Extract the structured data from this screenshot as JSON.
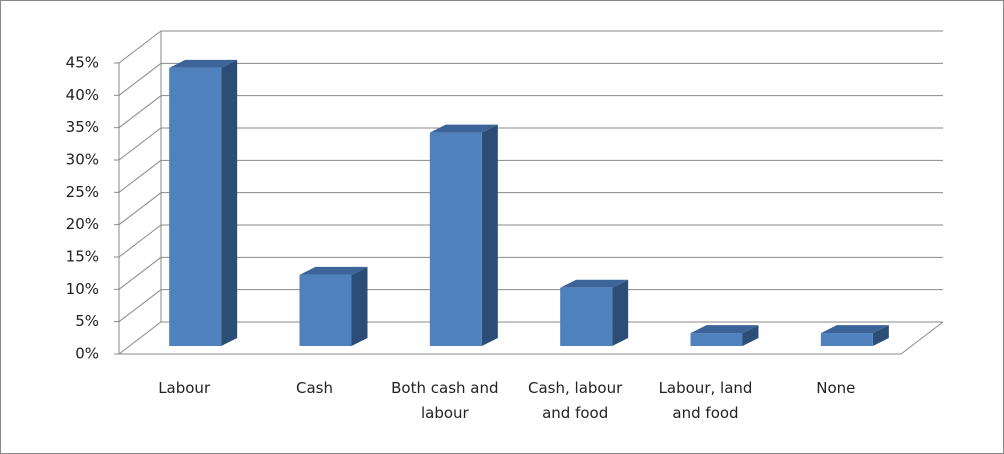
{
  "chart_data": {
    "type": "bar3d",
    "categories": [
      "Labour",
      "Cash",
      "Both cash and labour",
      "Cash, labour and food",
      "Labour, land and food",
      "None"
    ],
    "values": [
      43,
      11,
      33,
      9,
      2,
      2
    ],
    "color": "#4f81bd",
    "ylim": [
      0,
      45
    ],
    "yticks": [
      {
        "value": 0,
        "label": "0%"
      },
      {
        "value": 5,
        "label": "5%"
      },
      {
        "value": 10,
        "label": "10%"
      },
      {
        "value": 15,
        "label": "15%"
      },
      {
        "value": 20,
        "label": "20%"
      },
      {
        "value": 25,
        "label": "25%"
      },
      {
        "value": 30,
        "label": "30%"
      },
      {
        "value": 35,
        "label": "35%"
      },
      {
        "value": 40,
        "label": "40%"
      },
      {
        "value": 45,
        "label": "45%"
      }
    ],
    "grid": true
  }
}
